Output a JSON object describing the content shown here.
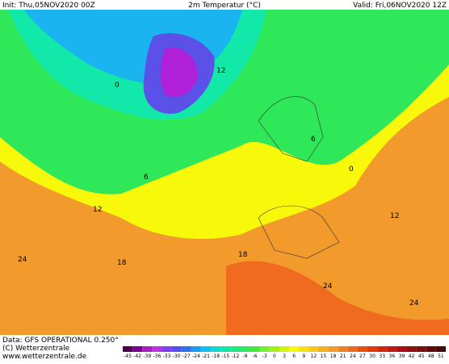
{
  "header": {
    "init": "Init: Thu,05NOV2020 00Z",
    "title": "2m Temperatur (°C)",
    "valid": "Valid: Fri,06NOV2020 12Z"
  },
  "footer": {
    "source": "Data: GFS OPERATIONAL 0.250°",
    "copyright": "(C) Wetterzentrale",
    "url": "www.wetterzentrale.de"
  },
  "colorbar": {
    "ticks": [
      -45,
      -42,
      -39,
      -36,
      -33,
      -30,
      -27,
      -24,
      -21,
      -18,
      -15,
      -12,
      -9,
      -6,
      -3,
      0,
      3,
      6,
      9,
      12,
      15,
      18,
      21,
      24,
      27,
      30,
      33,
      36,
      39,
      42,
      45,
      48,
      51
    ]
  },
  "contour_labels": [
    0,
    0,
    6,
    6,
    12,
    12,
    12,
    18,
    18,
    24,
    24,
    24
  ]
}
